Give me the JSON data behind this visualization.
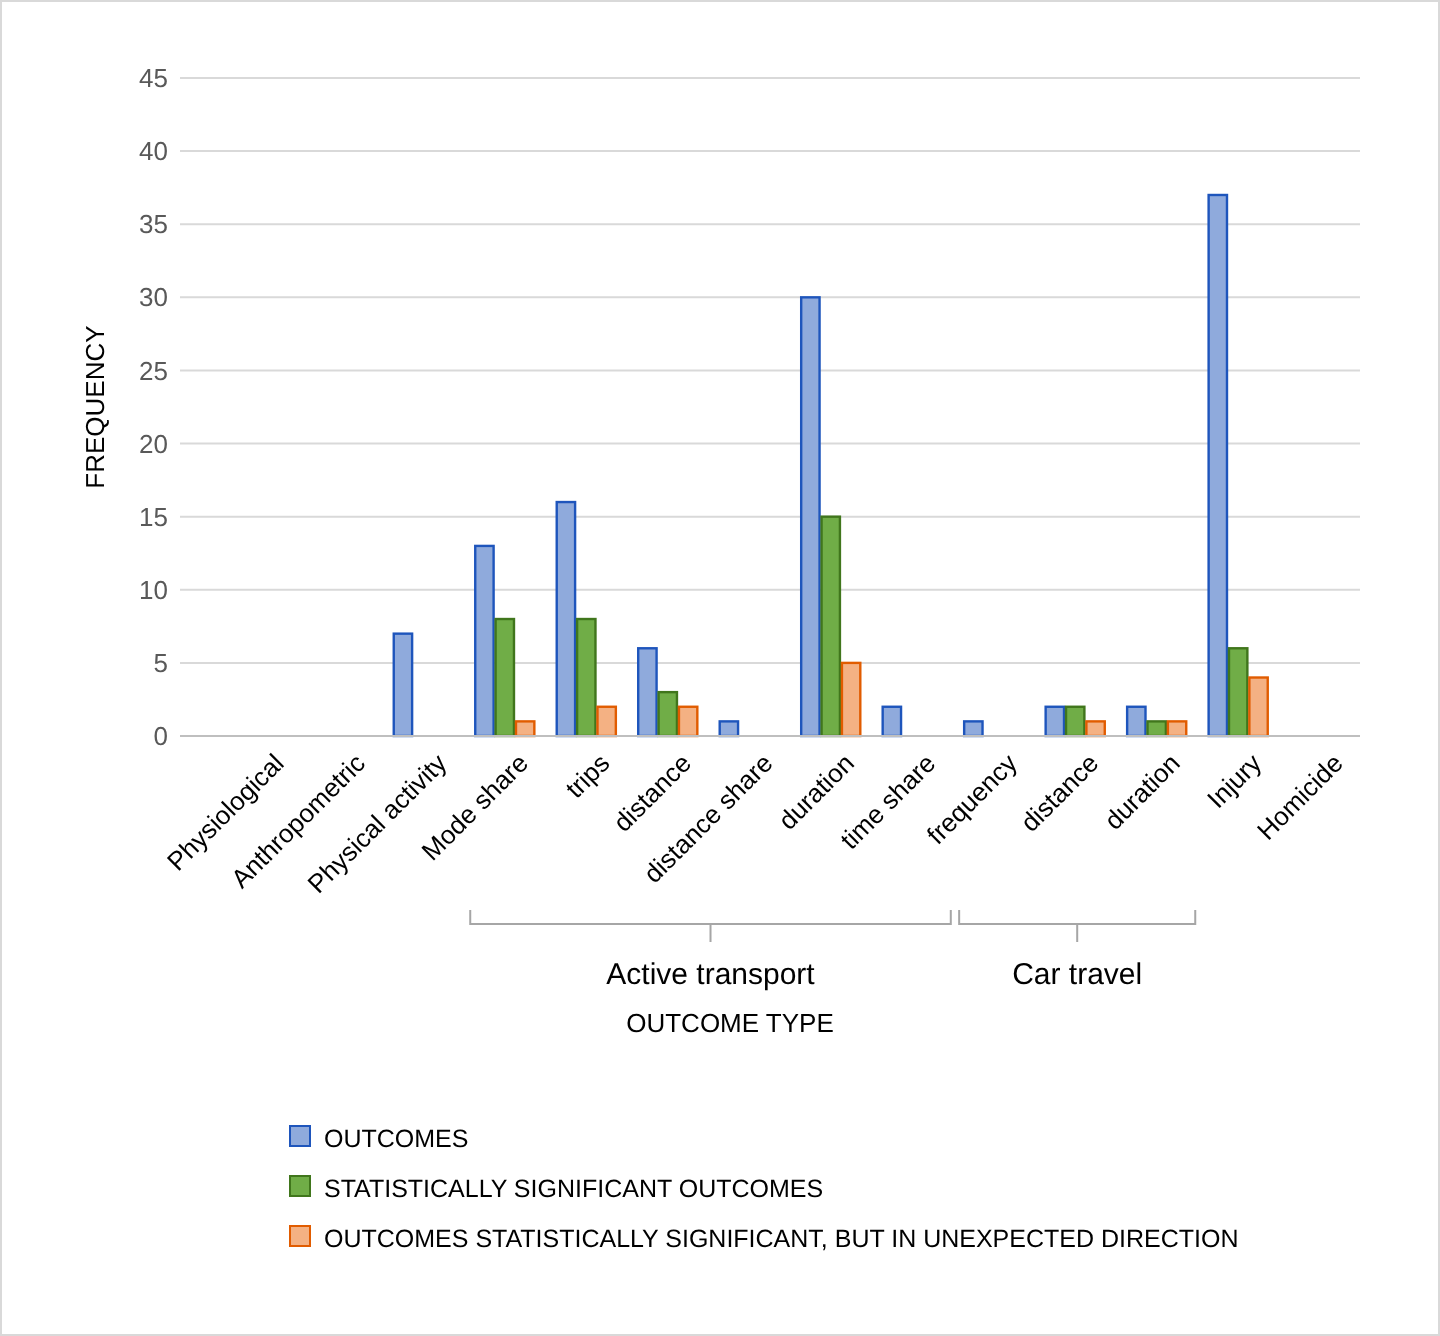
{
  "chart_data": {
    "type": "bar",
    "xlabel": "OUTCOME TYPE",
    "ylabel": "FREQUENCY",
    "categories": [
      "Physiological",
      "Anthropometric",
      "Physical activity",
      "Mode share",
      "trips",
      "distance",
      "distance share",
      "duration",
      "time share",
      "frequency",
      "distance",
      "duration",
      "Injury",
      "Homicide"
    ],
    "series": [
      {
        "name": "OUTCOMES",
        "color": "#8faadc",
        "values": [
          0,
          0,
          7,
          13,
          16,
          6,
          1,
          30,
          2,
          1,
          2,
          2,
          37,
          0
        ]
      },
      {
        "name": "STATISTICALLY SIGNIFICANT OUTCOMES",
        "color": "#70ad47",
        "values": [
          0,
          0,
          0,
          8,
          8,
          3,
          0,
          15,
          0,
          0,
          2,
          1,
          6,
          0
        ]
      },
      {
        "name": "OUTCOMES STATISTICALLY SIGNIFICANT, BUT IN UNEXPECTED DIRECTION",
        "color": "#f4b183",
        "values": [
          0,
          0,
          0,
          1,
          2,
          2,
          0,
          5,
          0,
          0,
          1,
          1,
          4,
          0
        ]
      }
    ],
    "ylim": [
      0,
      45
    ],
    "yticks": [
      0,
      5,
      10,
      15,
      20,
      25,
      30,
      35,
      40,
      45
    ],
    "grid": "y",
    "legend": "bottom",
    "annotations": [
      "Active transport",
      "Car travel"
    ]
  }
}
